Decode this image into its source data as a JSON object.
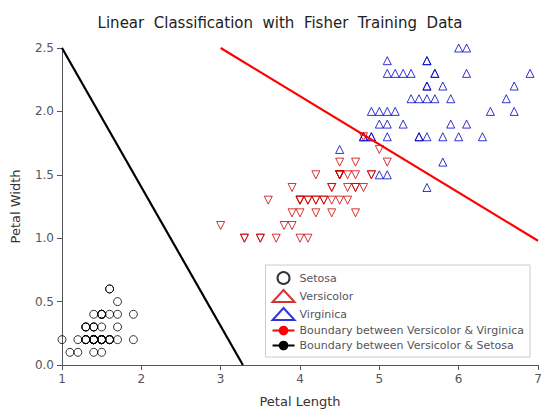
{
  "chart_data": {
    "type": "scatter",
    "title": "Linear  Classification  with  Fisher  Training  Data",
    "xlabel": "Petal Length",
    "ylabel": "Petal Width",
    "xlim": [
      1,
      7
    ],
    "ylim": [
      0,
      2.5
    ],
    "xticks": [
      1,
      2,
      3,
      4,
      5,
      6,
      7
    ],
    "yticks": [
      {
        "value": 0,
        "label": "0.0"
      },
      0.5,
      {
        "value": 1.0,
        "label": "1.0"
      },
      1.5,
      {
        "value": 2.0,
        "label": "2.0"
      },
      2.5
    ],
    "grid": false,
    "legend": "lower right",
    "series": [
      {
        "name": "Setosa",
        "type": "scatter",
        "marker": "circle",
        "color": "#000000",
        "x": [
          1.4,
          1.4,
          1.3,
          1.5,
          1.4,
          1.7,
          1.4,
          1.5,
          1.4,
          1.5,
          1.5,
          1.6,
          1.4,
          1.1,
          1.2,
          1.5,
          1.3,
          1.4,
          1.7,
          1.5,
          1.7,
          1.5,
          1.0,
          1.7,
          1.9,
          1.6,
          1.6,
          1.5,
          1.4,
          1.6,
          1.6,
          1.5,
          1.5,
          1.4,
          1.5,
          1.2,
          1.3,
          1.4,
          1.3,
          1.5,
          1.3,
          1.3,
          1.3,
          1.6,
          1.9,
          1.4,
          1.6,
          1.4,
          1.5,
          1.4
        ],
        "values": [
          0.2,
          0.2,
          0.2,
          0.2,
          0.2,
          0.4,
          0.3,
          0.2,
          0.2,
          0.1,
          0.2,
          0.2,
          0.1,
          0.1,
          0.2,
          0.2,
          0.3,
          0.3,
          0.3,
          0.3,
          0.2,
          0.4,
          0.2,
          0.5,
          0.2,
          0.2,
          0.4,
          0.2,
          0.2,
          0.2,
          0.6,
          0.4,
          0.4,
          0.4,
          0.4,
          0.1,
          0.2,
          0.2,
          0.2,
          0.2,
          0.3,
          0.3,
          0.2,
          0.6,
          0.4,
          0.3,
          0.2,
          0.2,
          0.2,
          0.2
        ]
      },
      {
        "name": "Versicolor",
        "type": "scatter",
        "marker": "triangle_down",
        "color": "#cc0000",
        "x": [
          4.7,
          4.5,
          4.9,
          4.0,
          4.6,
          4.5,
          4.7,
          3.3,
          4.6,
          3.9,
          3.5,
          4.2,
          4.0,
          4.7,
          3.6,
          4.4,
          4.5,
          4.1,
          4.5,
          3.9,
          4.8,
          4.0,
          4.9,
          4.7,
          4.3,
          4.4,
          4.8,
          5.0,
          4.5,
          3.5,
          3.8,
          3.7,
          3.9,
          5.1,
          4.5,
          4.5,
          4.7,
          4.4,
          4.1,
          4.0,
          4.4,
          4.6,
          4.0,
          3.3,
          4.2,
          4.2,
          4.2,
          4.3,
          3.0,
          4.1
        ],
        "values": [
          1.4,
          1.5,
          1.5,
          1.3,
          1.5,
          1.3,
          1.6,
          1.0,
          1.3,
          1.4,
          1.0,
          1.5,
          1.0,
          1.4,
          1.3,
          1.4,
          1.5,
          1.0,
          1.5,
          1.1,
          1.8,
          1.3,
          1.5,
          1.2,
          1.3,
          1.4,
          1.4,
          1.7,
          1.5,
          1.0,
          1.1,
          1.0,
          1.2,
          1.6,
          1.5,
          1.6,
          1.5,
          1.3,
          1.3,
          1.3,
          1.2,
          1.4,
          1.2,
          1.0,
          1.3,
          1.2,
          1.3,
          1.3,
          1.1,
          1.3
        ]
      },
      {
        "name": "Virginica",
        "type": "scatter",
        "marker": "triangle_up",
        "color": "#0000cc",
        "x": [
          6.0,
          5.1,
          5.9,
          5.6,
          5.8,
          6.6,
          4.5,
          6.3,
          5.8,
          6.1,
          5.1,
          5.3,
          5.5,
          5.0,
          5.1,
          5.3,
          5.5,
          6.7,
          6.9,
          5.0,
          5.7,
          4.9,
          6.7,
          4.9,
          5.7,
          6.0,
          4.8,
          4.9,
          5.6,
          5.8,
          6.1,
          6.4,
          5.6,
          5.1,
          5.6,
          6.1,
          5.6,
          5.5,
          4.8,
          5.4,
          5.6,
          5.1,
          5.9,
          5.7,
          5.2,
          5.0,
          5.2,
          5.4,
          5.1,
          5.6
        ],
        "values": [
          2.5,
          1.9,
          2.1,
          1.8,
          2.2,
          2.1,
          1.7,
          1.8,
          1.8,
          2.5,
          2.0,
          1.9,
          2.1,
          2.0,
          2.4,
          2.3,
          1.8,
          2.2,
          2.3,
          1.5,
          2.3,
          2.0,
          2.0,
          1.8,
          2.1,
          1.8,
          1.8,
          1.8,
          2.1,
          1.6,
          1.9,
          2.0,
          2.2,
          1.5,
          1.4,
          2.3,
          2.4,
          1.8,
          1.8,
          2.1,
          2.4,
          2.3,
          1.9,
          2.3,
          2.3,
          1.9,
          2.0,
          2.3,
          1.8,
          2.2
        ]
      },
      {
        "name": "Boundary between Versicolor & Virginica",
        "type": "line",
        "line_style": "solid",
        "color": "#ff0000",
        "x": [
          3.0,
          7.0
        ],
        "values": [
          2.5,
          0.98
        ]
      },
      {
        "name": "Boundary between Versicolor & Setosa",
        "type": "line",
        "line_style": "solid",
        "color": "#000000",
        "x": [
          1.0,
          3.28
        ],
        "values": [
          2.5,
          0.0
        ]
      }
    ]
  }
}
